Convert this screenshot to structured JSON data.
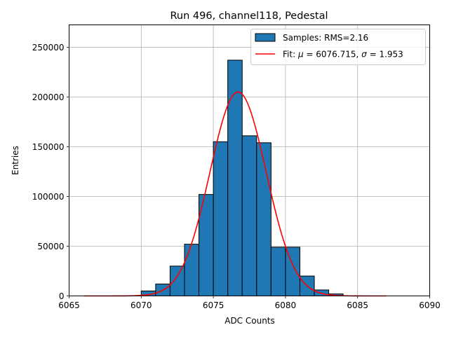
{
  "chart_data": {
    "type": "bar",
    "title": "Run 496, channel118, Pedestal",
    "xlabel": "ADC Counts",
    "ylabel": "Entries",
    "xlim": [
      6065,
      6090
    ],
    "ylim": [
      0,
      272500
    ],
    "x_ticks": [
      "6065",
      "6070",
      "6075",
      "6080",
      "6085",
      "6090"
    ],
    "y_ticks": [
      "0",
      "50000",
      "100000",
      "150000",
      "200000",
      "250000"
    ],
    "grid": true,
    "legend_position": "top-right",
    "histogram": {
      "name": "Samples: RMS=2.16",
      "color": "#1f77b4",
      "edge_color": "#000000",
      "bins": [
        {
          "x0": 6070.0,
          "x1": 6071.0,
          "value": 5000
        },
        {
          "x0": 6071.0,
          "x1": 6072.0,
          "value": 12000
        },
        {
          "x0": 6072.0,
          "x1": 6073.0,
          "value": 30000
        },
        {
          "x0": 6073.0,
          "x1": 6074.0,
          "value": 52000
        },
        {
          "x0": 6074.0,
          "x1": 6075.0,
          "value": 102000
        },
        {
          "x0": 6075.0,
          "x1": 6076.0,
          "value": 155000
        },
        {
          "x0": 6076.0,
          "x1": 6077.0,
          "value": 237000
        },
        {
          "x0": 6077.0,
          "x1": 6078.0,
          "value": 161000
        },
        {
          "x0": 6078.0,
          "x1": 6079.0,
          "value": 154000
        },
        {
          "x0": 6079.0,
          "x1": 6080.0,
          "value": 49000
        },
        {
          "x0": 6080.0,
          "x1": 6081.0,
          "value": 49000
        },
        {
          "x0": 6081.0,
          "x1": 6082.0,
          "value": 20000
        },
        {
          "x0": 6082.0,
          "x1": 6083.0,
          "value": 6000
        },
        {
          "x0": 6083.0,
          "x1": 6084.0,
          "value": 2000
        }
      ]
    },
    "fit": {
      "name_prefix": "Fit: ",
      "mu_symbol": "μ",
      "sigma_symbol": "σ",
      "mu_text": " = 6076.715, ",
      "sigma_text": " = 1.953",
      "color": "#ff0000",
      "mu": 6076.715,
      "sigma": 1.953,
      "amplitude": 205000,
      "x_range": [
        6066,
        6087
      ]
    }
  }
}
